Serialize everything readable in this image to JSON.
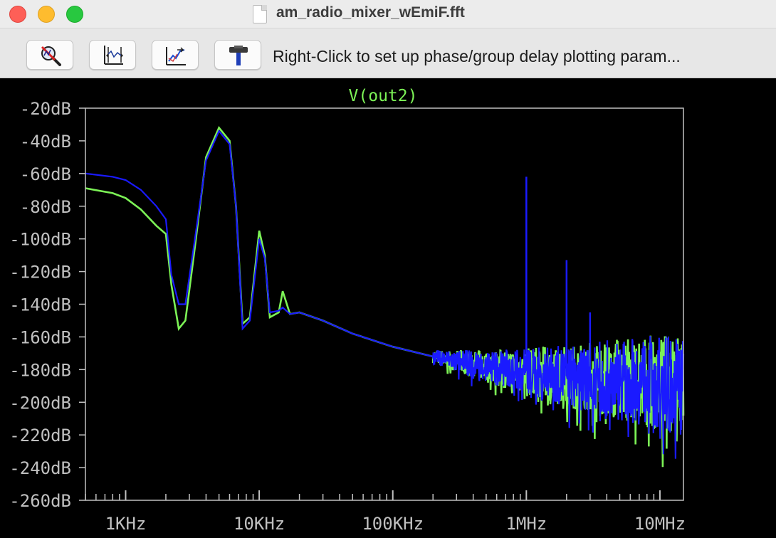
{
  "window": {
    "title": "am_radio_mixer_wEmiF.fft"
  },
  "toolbar": {
    "buttons": [
      {
        "icon": "zoom-cancel-icon"
      },
      {
        "icon": "autorange-icon"
      },
      {
        "icon": "waveform-icon"
      },
      {
        "icon": "hammer-icon"
      }
    ],
    "hint": "Right-Click to set up phase/group delay plotting param..."
  },
  "colors": {
    "background": "#000000",
    "axis": "#c0c0c0",
    "trace_green": "#7cf256",
    "trace_blue": "#1a1aff"
  },
  "chart_data": {
    "type": "line",
    "title": "V(out2)",
    "x_scale": "log",
    "xlim": [
      500,
      15000000
    ],
    "ylim": [
      -260,
      -20
    ],
    "y_ticks": [
      -20,
      -40,
      -60,
      -80,
      -100,
      -120,
      -140,
      -160,
      -180,
      -200,
      -220,
      -240,
      -260
    ],
    "y_tick_labels": [
      "-20dB",
      "-40dB",
      "-60dB",
      "-80dB",
      "-100dB",
      "-120dB",
      "-140dB",
      "-160dB",
      "-180dB",
      "-200dB",
      "-220dB",
      "-240dB",
      "-260dB"
    ],
    "x_ticks": [
      1000,
      10000,
      100000,
      1000000,
      10000000
    ],
    "x_tick_labels": [
      "1KHz",
      "10KHz",
      "100KHz",
      "1MHz",
      "10MHz"
    ],
    "series": [
      {
        "color": "#7cf256",
        "points": [
          [
            500,
            -69
          ],
          [
            800,
            -72
          ],
          [
            1000,
            -75
          ],
          [
            1300,
            -82
          ],
          [
            1700,
            -92
          ],
          [
            2000,
            -97
          ],
          [
            2200,
            -128
          ],
          [
            2500,
            -155
          ],
          [
            2800,
            -150
          ],
          [
            3300,
            -105
          ],
          [
            4000,
            -50
          ],
          [
            5000,
            -32
          ],
          [
            6000,
            -40
          ],
          [
            6700,
            -80
          ],
          [
            7500,
            -152
          ],
          [
            8500,
            -148
          ],
          [
            10000,
            -95
          ],
          [
            11000,
            -110
          ],
          [
            12000,
            -148
          ],
          [
            14000,
            -145
          ],
          [
            15000,
            -132
          ],
          [
            17000,
            -146
          ],
          [
            20000,
            -145
          ],
          [
            30000,
            -150
          ],
          [
            50000,
            -158
          ],
          [
            100000,
            -166
          ],
          [
            200000,
            -172
          ],
          [
            500000,
            -178
          ],
          [
            1000000,
            -181
          ],
          [
            2000000,
            -184
          ],
          [
            5000000,
            -186
          ],
          [
            10000000,
            -188
          ],
          [
            14000000,
            -190
          ]
        ]
      },
      {
        "color": "#1a1aff",
        "points": [
          [
            500,
            -60
          ],
          [
            800,
            -62
          ],
          [
            1000,
            -64
          ],
          [
            1300,
            -70
          ],
          [
            1700,
            -80
          ],
          [
            2000,
            -88
          ],
          [
            2200,
            -122
          ],
          [
            2500,
            -140
          ],
          [
            2800,
            -140
          ],
          [
            3300,
            -100
          ],
          [
            4000,
            -52
          ],
          [
            5000,
            -34
          ],
          [
            6000,
            -42
          ],
          [
            6700,
            -80
          ],
          [
            7500,
            -155
          ],
          [
            8500,
            -150
          ],
          [
            10000,
            -100
          ],
          [
            11000,
            -112
          ],
          [
            12000,
            -145
          ],
          [
            14000,
            -144
          ],
          [
            15000,
            -142
          ],
          [
            17000,
            -146
          ],
          [
            20000,
            -145
          ],
          [
            30000,
            -150
          ],
          [
            50000,
            -158
          ],
          [
            100000,
            -166
          ],
          [
            200000,
            -172
          ],
          [
            500000,
            -178
          ],
          [
            1000000,
            -181
          ],
          [
            2000000,
            -184
          ],
          [
            5000000,
            -186
          ],
          [
            10000000,
            -188
          ],
          [
            14000000,
            -190
          ]
        ],
        "spikes": [
          [
            1000000,
            -62
          ],
          [
            2000000,
            -113
          ],
          [
            3000000,
            -145
          ]
        ]
      }
    ]
  }
}
